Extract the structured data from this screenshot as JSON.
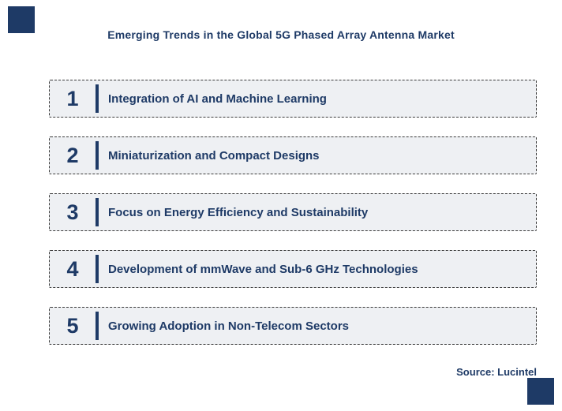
{
  "page": {
    "title": "Emerging Trends in the Global 5G Phased Array Antenna Market",
    "source": "Source: Lucintel"
  },
  "colors": {
    "navy": "#1e3a66",
    "box_background": "#eef0f3",
    "box_border": "#3a3a3a"
  },
  "trends": [
    {
      "number": "1",
      "label": "Integration of AI and Machine Learning"
    },
    {
      "number": "2",
      "label": "Miniaturization and Compact Designs"
    },
    {
      "number": "3",
      "label": "Focus on Energy Efficiency and Sustainability"
    },
    {
      "number": "4",
      "label": "Development of mmWave and Sub-6 GHz Technologies"
    },
    {
      "number": "5",
      "label": "Growing Adoption in Non-Telecom Sectors"
    }
  ]
}
